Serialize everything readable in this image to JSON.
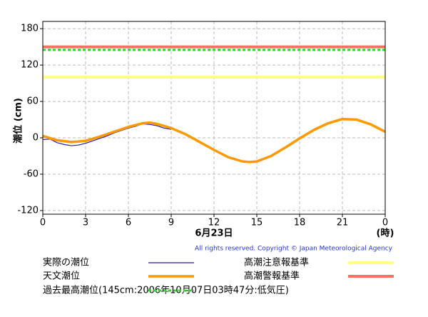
{
  "chart_data": {
    "type": "line",
    "ylabel": "潮位 (cm)",
    "xlabel": "6月23日",
    "xunit": "(時)",
    "copyright": "All rights reserved. Copyright © Japan Meteorological Agency",
    "xlim": [
      0,
      24
    ],
    "xticks": [
      0,
      3,
      6,
      9,
      12,
      15,
      18,
      21,
      {
        "value": 24,
        "label": "0"
      }
    ],
    "ylim": [
      -126,
      192
    ],
    "yticks": [
      -120,
      -60,
      0,
      60,
      120,
      180
    ],
    "grid": true,
    "series": [
      {
        "name": "実際の潮位",
        "color": "#2a1fa8",
        "x": [
          0,
          0.5,
          1,
          1.5,
          2,
          2.5,
          3,
          3.5,
          4,
          4.5,
          5,
          5.5,
          6,
          6.5,
          7,
          7.5,
          8,
          8.5,
          9
        ],
        "values": [
          -3,
          -2,
          -8,
          -11,
          -13,
          -12,
          -9,
          -5,
          -1,
          3,
          8,
          12,
          16,
          19,
          23,
          22,
          20,
          16,
          14
        ]
      },
      {
        "name": "天文潮位",
        "color": "#ff9900",
        "x": [
          0,
          1,
          2,
          3,
          4,
          5,
          6,
          7,
          7.5,
          8,
          9,
          10,
          11,
          12,
          13,
          14,
          14.5,
          15,
          16,
          17,
          18,
          19,
          20,
          21,
          22,
          23,
          24
        ],
        "values": [
          3,
          -4,
          -7,
          -5,
          2,
          10,
          18,
          24,
          25,
          23,
          16,
          6,
          -7,
          -20,
          -32,
          -39,
          -40,
          -39,
          -30,
          -16,
          -1,
          13,
          24,
          31,
          30,
          22,
          10
        ]
      }
    ],
    "levels": [
      {
        "name": "高潮注意報基準",
        "value": 100,
        "color": "#ffff80",
        "dashed": false
      },
      {
        "name": "高潮警報基準",
        "value": 150,
        "color": "#ff7060",
        "dashed": false
      },
      {
        "name": "過去最高潮位(145cm:2006年10月07日03時47分:低気圧)",
        "value": 145,
        "color": "#22dd22",
        "dashed": true
      }
    ]
  }
}
